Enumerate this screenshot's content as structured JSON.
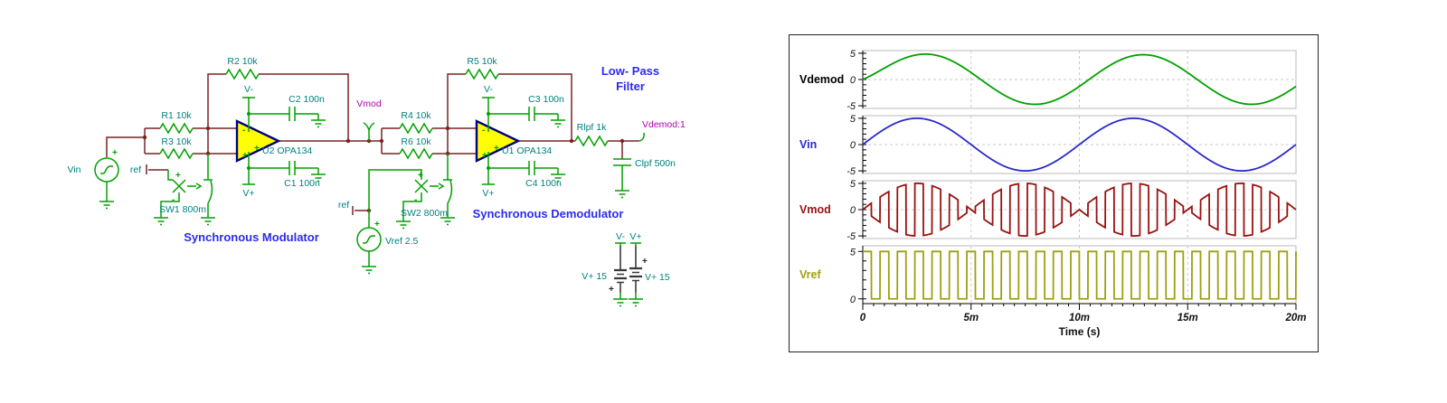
{
  "schematic": {
    "titles": {
      "modulator": "Synchronous Modulator",
      "demodulator": "Synchronous Demodulator",
      "lowpass1": "Low- Pass",
      "lowpass2": "Filter"
    },
    "labels": {
      "r1": "R1 10k",
      "r2": "R2 10k",
      "r3": "R3 10k",
      "r4": "R4 10k",
      "r5": "R5 10k",
      "r6": "R6 10k",
      "c1": "C1 100n",
      "c2": "C2 100n",
      "c3": "C3 100n",
      "c4": "C4 100n",
      "u1": "U1 OPA134",
      "u2": "U2 OPA134",
      "sw1": "SW1 800m",
      "sw2": "SW2 800m",
      "rlpf": "Rlpf 1k",
      "clpf": "Clpf 500n",
      "vin": "Vin",
      "vref": "Vref 2.5",
      "bat1": "V+ 15",
      "bat2": "V+ 15"
    },
    "nodes": {
      "vmod": "Vmod",
      "vdemod": "Vdemod:1",
      "ref1": "ref",
      "ref2": "ref",
      "u2_vminus": "V-",
      "u2_vplus": "V+",
      "u1_vminus": "V-",
      "u1_vplus": "V+",
      "bat1_node": "V-",
      "bat2_node": "V+"
    },
    "marks": {
      "plus": "+",
      "minus": "-"
    },
    "colors": {
      "wire": "#7a2323",
      "component": "#00a000",
      "label": "#008080",
      "node_label": "#b400b4",
      "annotation": "#2b2bf0",
      "opamp_fill": "#ffff00",
      "opamp_stroke": "#000080"
    }
  },
  "chart_data": {
    "type": "line",
    "title": "",
    "xlabel": "Time (s)",
    "x_range_s": [
      0,
      0.02
    ],
    "x_axis": {
      "label": "Time (s)",
      "tick_labels": [
        "0",
        "5m",
        "10m",
        "15m",
        "20m"
      ],
      "tick_values_s": [
        0,
        0.005,
        0.01,
        0.015,
        0.02
      ],
      "minor_step_s": 0.0005
    },
    "grid": true,
    "panels": [
      {
        "name": "Vdemod",
        "color": "#00a000",
        "label_color": "#000000",
        "yticks": [
          5,
          0,
          -5
        ],
        "ylim": [
          -5.5,
          5.5
        ],
        "waveform": {
          "kind": "sine",
          "amplitude": 4.72,
          "frequency_hz": 100,
          "phase_lag_rad": 0.28,
          "startup_transient_s": 0.0012
        }
      },
      {
        "name": "Vin",
        "color": "#2929cc",
        "label_color": "#2929cc",
        "yticks": [
          5,
          0,
          -5
        ],
        "ylim": [
          -5.5,
          5.5
        ],
        "waveform": {
          "kind": "sine",
          "amplitude": 5,
          "frequency_hz": 100,
          "phase_lag_rad": 0,
          "startup_transient_s": 0
        }
      },
      {
        "name": "Vmod",
        "color": "#991111",
        "label_color": "#991111",
        "yticks": [
          5,
          0,
          -5
        ],
        "ylim": [
          -5.5,
          5.5
        ],
        "waveform": {
          "kind": "chopped-sine",
          "amplitude": 5,
          "frequency_hz": 100,
          "chop_frequency_hz": 1250
        }
      },
      {
        "name": "Vref",
        "color": "#9f9f12",
        "label_color": "#9f9f12",
        "yticks": [
          5,
          0
        ],
        "ylim": [
          -0.5,
          5.6
        ],
        "waveform": {
          "kind": "square",
          "low": 0,
          "high": 5,
          "frequency_hz": 1250,
          "duty": 0.5
        }
      }
    ]
  }
}
